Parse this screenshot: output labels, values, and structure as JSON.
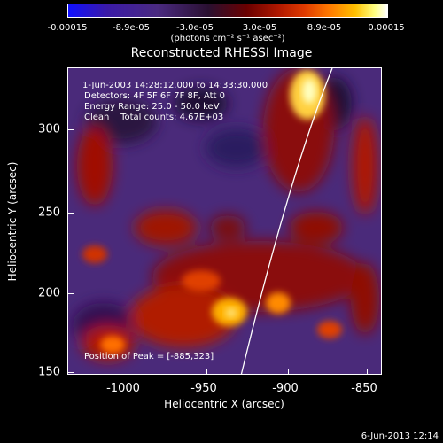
{
  "colorbar": {
    "ticks": [
      "-0.00015",
      "-8.9e-05",
      "-3.0e-05",
      "3.0e-05",
      "8.9e-05",
      "0.00015"
    ],
    "units": "(photons cm⁻² s⁻¹ asec⁻²)"
  },
  "plot": {
    "title": "Reconstructed RHESSI Image",
    "info": {
      "time": "1-Jun-2003 14:28:12.000 to 14:33:30.000",
      "detectors": "Detectors: 4F 5F 6F 7F 8F, Att 0",
      "energy": "Energy Range: 25.0 - 50.0 keV",
      "clean": "Clean    Total counts: 4.67E+03"
    },
    "peak_label": "Position of Peak = [-885,323]",
    "xlabel": "Heliocentric X (arcsec)",
    "ylabel": "Heliocentric Y (arcsec)",
    "xticks": [
      "-1000",
      "-950",
      "-900",
      "-850"
    ],
    "yticks": [
      "300",
      "250",
      "200",
      "150"
    ],
    "xlim": [
      -1035,
      -845
    ],
    "ylim": [
      148,
      335
    ]
  },
  "footer": {
    "date": "6-Jun-2013 12:14"
  }
}
